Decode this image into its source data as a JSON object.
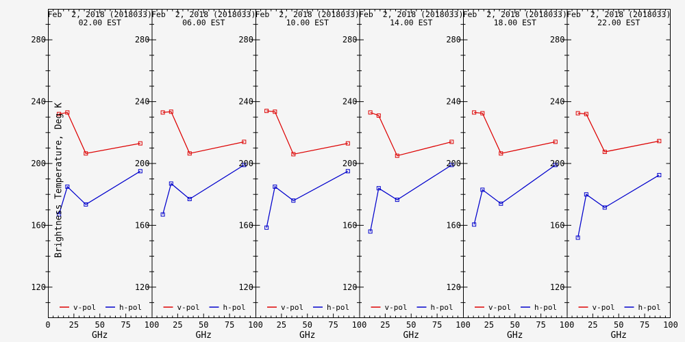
{
  "chart_data": {
    "type": "line",
    "figure_kind": "six-panel small-multiples, brightness temperature spectra vs frequency",
    "ylabel": "Brightness Temperature, Deg K",
    "xlabel": "GHz",
    "xlim": [
      0,
      100
    ],
    "ylim": [
      100,
      300
    ],
    "xticks": [
      0,
      25,
      50,
      75,
      100
    ],
    "yticks": [
      120,
      160,
      200,
      240,
      280
    ],
    "x_minor_step": 5,
    "y_minor_step": 10,
    "grid": false,
    "x_ghz": [
      10.65,
      18.7,
      36.5,
      89
    ],
    "colors": {
      "vpol": "#dd0000",
      "hpol": "#0000cc",
      "axis": "#000000",
      "background": "#f5f5f5"
    },
    "legend": [
      {
        "label": "v-pol",
        "color": "#dd0000"
      },
      {
        "label": "h-pol",
        "color": "#0000cc"
      }
    ],
    "legend_position": "bottom-inside-each-panel",
    "panels": [
      {
        "title": "Feb  2, 2018 (2018033)",
        "subtitle": "02.00 EST",
        "series": [
          {
            "name": "v-pol",
            "color": "#dd0000",
            "values": [
              232,
              233,
              206.5,
              213
            ]
          },
          {
            "name": "h-pol",
            "color": "#0000cc",
            "values": [
              167,
              185,
              173.5,
              195
            ]
          }
        ]
      },
      {
        "title": "Feb  2, 2018 (2018033)",
        "subtitle": "06.00 EST",
        "series": [
          {
            "name": "v-pol",
            "color": "#dd0000",
            "values": [
              233,
              233.5,
              206.5,
              214
            ]
          },
          {
            "name": "h-pol",
            "color": "#0000cc",
            "values": [
              167,
              187,
              177,
              199
            ]
          }
        ]
      },
      {
        "title": "Feb  2, 2018 (2018033)",
        "subtitle": "10.00 EST",
        "series": [
          {
            "name": "v-pol",
            "color": "#dd0000",
            "values": [
              234,
              233.5,
              206,
              213
            ]
          },
          {
            "name": "h-pol",
            "color": "#0000cc",
            "values": [
              158.5,
              185,
              176,
              195
            ]
          }
        ]
      },
      {
        "title": "Feb  2, 2018 (2018033)",
        "subtitle": "14.00 EST",
        "series": [
          {
            "name": "v-pol",
            "color": "#dd0000",
            "values": [
              233,
              231,
              205,
              214
            ]
          },
          {
            "name": "h-pol",
            "color": "#0000cc",
            "values": [
              156,
              184,
              176.5,
              199
            ]
          }
        ]
      },
      {
        "title": "Feb  2, 2018 (2018033)",
        "subtitle": "18.00 EST",
        "series": [
          {
            "name": "v-pol",
            "color": "#dd0000",
            "values": [
              233,
              232.5,
              206.5,
              214
            ]
          },
          {
            "name": "h-pol",
            "color": "#0000cc",
            "values": [
              160.5,
              183,
              174,
              199
            ]
          }
        ]
      },
      {
        "title": "Feb  2, 2018 (2018033)",
        "subtitle": "22.00 EST",
        "series": [
          {
            "name": "v-pol",
            "color": "#dd0000",
            "values": [
              232.5,
              232,
              207.5,
              214.5
            ]
          },
          {
            "name": "h-pol",
            "color": "#0000cc",
            "values": [
              152,
              180,
              171.5,
              192.5
            ]
          }
        ]
      }
    ]
  }
}
